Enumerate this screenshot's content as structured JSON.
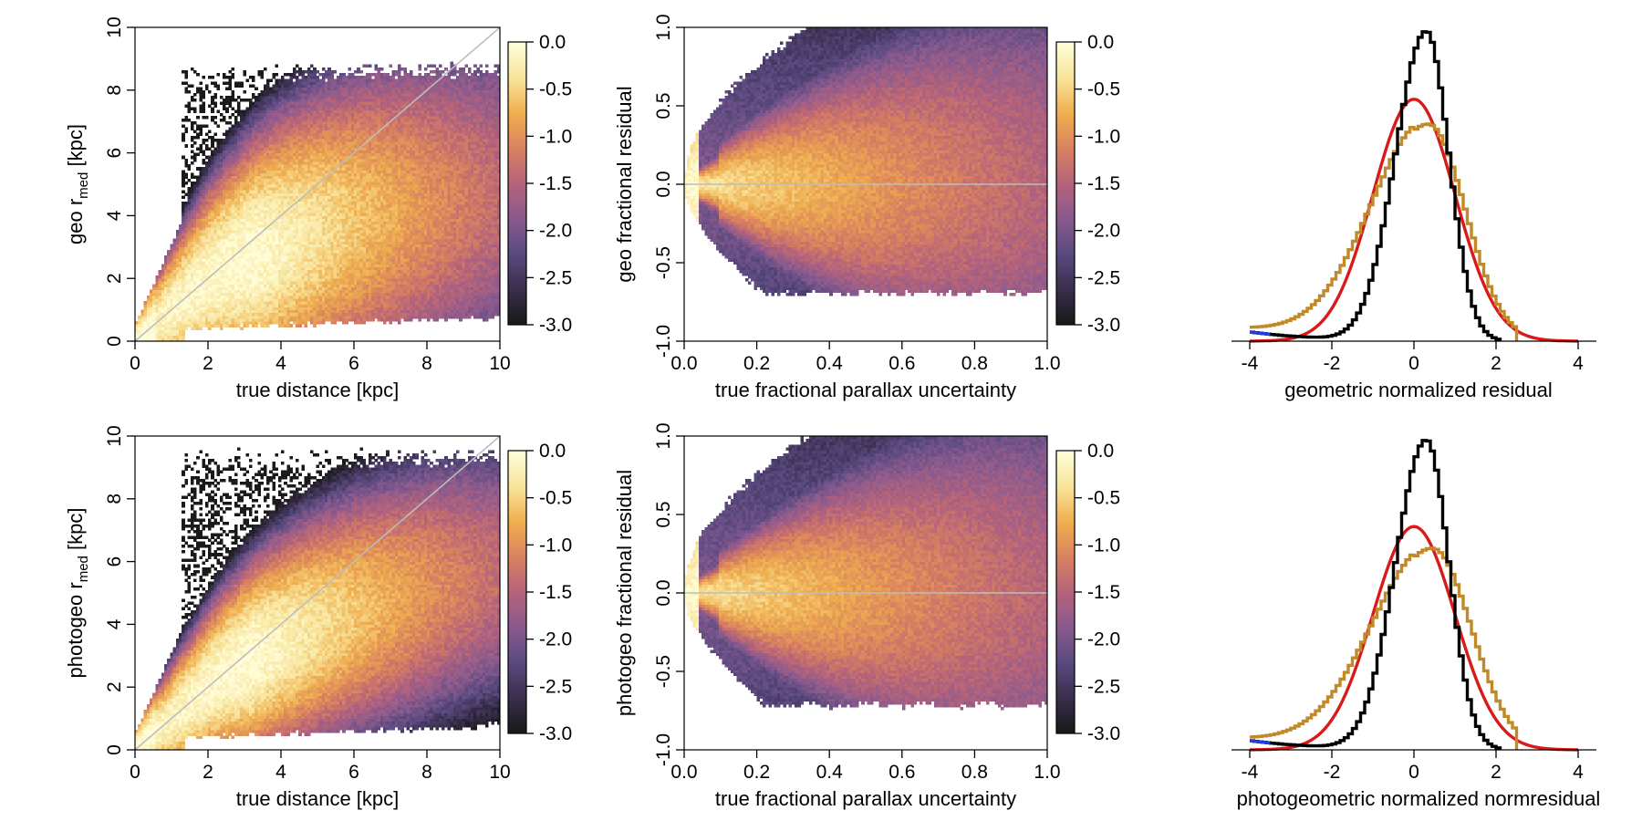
{
  "chart_data": [
    {
      "id": "geo_rmed",
      "type": "heatmap",
      "xlabel": "true distance [kpc]",
      "ylabel": {
        "prefix": "geo r",
        "sub": "med",
        "suffix": " [kpc]"
      },
      "xlim": [
        0,
        10
      ],
      "ylim": [
        0,
        10
      ],
      "xticks": [
        "0",
        "2",
        "4",
        "6",
        "8",
        "10"
      ],
      "yticks": [
        "0",
        "2",
        "4",
        "6",
        "8",
        "10"
      ],
      "density": {
        "kind": "distance",
        "saturation": 5.0,
        "scatter": 1.35,
        "upper": 8.6
      },
      "reference_line": "y = x",
      "colorbar": {
        "label_values": [
          "0.0",
          "-0.5",
          "-1.0",
          "-1.5",
          "-2.0",
          "-2.5",
          "-3.0"
        ],
        "range": [
          -3.0,
          0.0
        ]
      }
    },
    {
      "id": "geo_fracres",
      "type": "heatmap",
      "xlabel": "true fractional parallax uncertainty",
      "ylabel": {
        "prefix": "geo fractional residual",
        "sub": "",
        "suffix": ""
      },
      "xlim": [
        0,
        1
      ],
      "ylim": [
        -1,
        1
      ],
      "xticks": [
        "0.0",
        "0.2",
        "0.4",
        "0.6",
        "0.8",
        "1.0"
      ],
      "yticks": [
        "-1.0",
        "-0.5",
        "0.0",
        "0.5",
        "1.0"
      ],
      "density": {
        "kind": "fractional",
        "lower": -0.7
      },
      "reference_line": "y = 0",
      "colorbar": {
        "label_values": [
          "0.0",
          "-0.5",
          "-1.0",
          "-1.5",
          "-2.0",
          "-2.5",
          "-3.0"
        ],
        "range": [
          -3.0,
          0.0
        ]
      }
    },
    {
      "id": "geo_normres",
      "type": "line",
      "xlabel": "geometric normalized residual",
      "xlim": [
        -4,
        4
      ],
      "xticks": [
        "-4",
        "-2",
        "0",
        "2",
        "4"
      ],
      "series": [
        {
          "name": "gaussian",
          "color": "#d91a1a",
          "kind": "gaussian",
          "mean": 0,
          "sd": 1,
          "peak": 0.78
        },
        {
          "name": "ochre",
          "color": "#c08a2b",
          "kind": "skewnorm",
          "loc": 0.35,
          "scale": 0.95,
          "peak": 0.7,
          "tail": 0.04
        },
        {
          "name": "black",
          "color": "#000000",
          "kind": "narrow",
          "loc": 0.3,
          "scale": 0.55,
          "peak": 1.0,
          "tail": 0.03
        },
        {
          "name": "blue",
          "color": "#1f3de0",
          "kind": "narrow-tail",
          "loc": 0.3,
          "scale": 0.55,
          "peak": 1.0,
          "tail": 0.03
        }
      ]
    },
    {
      "id": "photogeo_rmed",
      "type": "heatmap",
      "xlabel": "true distance [kpc]",
      "ylabel": {
        "prefix": "photogeo r",
        "sub": "med",
        "suffix": " [kpc]"
      },
      "xlim": [
        0,
        10
      ],
      "ylim": [
        0,
        10
      ],
      "xticks": [
        "0",
        "2",
        "4",
        "6",
        "8",
        "10"
      ],
      "yticks": [
        "0",
        "2",
        "4",
        "6",
        "8",
        "10"
      ],
      "density": {
        "kind": "distance",
        "saturation": 7.0,
        "scatter": 1.05,
        "upper": 9.3
      },
      "reference_line": "y = x",
      "colorbar": {
        "label_values": [
          "0.0",
          "-0.5",
          "-1.0",
          "-1.5",
          "-2.0",
          "-2.5",
          "-3.0"
        ],
        "range": [
          -3.0,
          0.0
        ]
      }
    },
    {
      "id": "photogeo_fracres",
      "type": "heatmap",
      "xlabel": "true fractional parallax uncertainty",
      "ylabel": {
        "prefix": "photogeo fractional residual",
        "sub": "",
        "suffix": ""
      },
      "xlim": [
        0,
        1
      ],
      "ylim": [
        -1,
        1
      ],
      "xticks": [
        "0.0",
        "0.2",
        "0.4",
        "0.6",
        "0.8",
        "1.0"
      ],
      "yticks": [
        "-1.0",
        "-0.5",
        "0.0",
        "0.5",
        "1.0"
      ],
      "density": {
        "kind": "fractional",
        "lower": -0.72
      },
      "reference_line": "y = 0",
      "colorbar": {
        "label_values": [
          "0.0",
          "-0.5",
          "-1.0",
          "-1.5",
          "-2.0",
          "-2.5",
          "-3.0"
        ],
        "range": [
          -3.0,
          0.0
        ]
      }
    },
    {
      "id": "photogeo_normres",
      "type": "line",
      "xlabel": "photogeometric normalized normresidual",
      "xlim": [
        -4,
        4
      ],
      "xticks": [
        "-4",
        "-2",
        "0",
        "2",
        "4"
      ],
      "series": [
        {
          "name": "gaussian",
          "color": "#d91a1a",
          "kind": "gaussian",
          "mean": 0,
          "sd": 1,
          "peak": 0.72
        },
        {
          "name": "ochre",
          "color": "#c08a2b",
          "kind": "skewnorm",
          "loc": 0.45,
          "scale": 1.0,
          "peak": 0.65,
          "tail": 0.035
        },
        {
          "name": "black",
          "color": "#000000",
          "kind": "narrow",
          "loc": 0.3,
          "scale": 0.55,
          "peak": 1.0,
          "tail": 0.03
        },
        {
          "name": "blue",
          "color": "#1f3de0",
          "kind": "narrow-tail",
          "loc": 0.3,
          "scale": 0.55,
          "peak": 1.0,
          "tail": 0.03
        }
      ]
    }
  ],
  "colors": {
    "reference_line": "#bdbdbd",
    "colormap": [
      "#1a1a1a",
      "#3a2f4f",
      "#5a4a80",
      "#8a5a8e",
      "#b5637a",
      "#d9815f",
      "#efae4f",
      "#f8e39a",
      "#fffdd8"
    ]
  }
}
